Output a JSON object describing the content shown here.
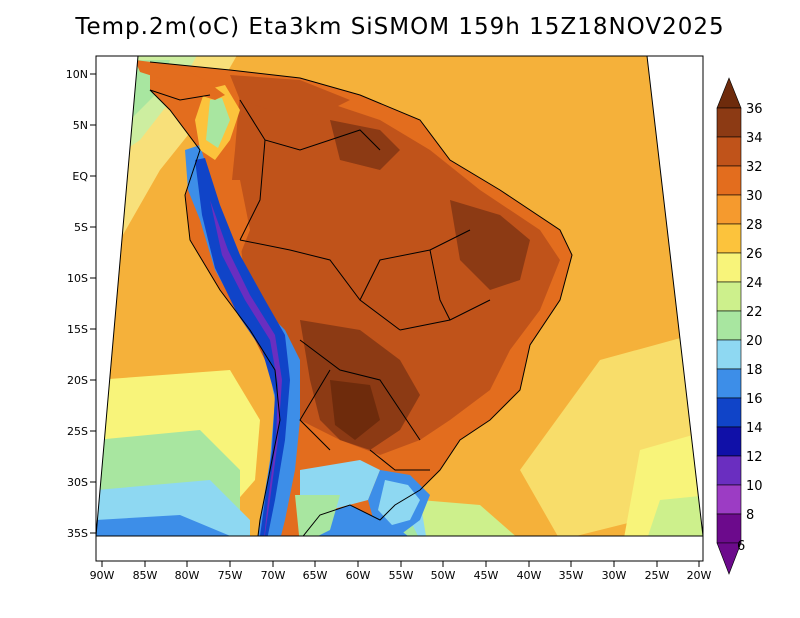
{
  "title": "Temp.2m(oC)  Eta3km  SiSMOM  159h  15Z18NOV2025",
  "map": {
    "lat_labels": [
      "10N",
      "5N",
      "EQ",
      "5S",
      "10S",
      "15S",
      "20S",
      "25S",
      "30S",
      "35S"
    ],
    "lon_labels": [
      "90W",
      "85W",
      "80W",
      "75W",
      "70W",
      "65W",
      "60W",
      "55W",
      "50W",
      "45W",
      "40W",
      "35W",
      "30W",
      "25W",
      "20W"
    ]
  },
  "colorbar": {
    "levels": [
      36,
      34,
      32,
      30,
      28,
      26,
      24,
      22,
      20,
      18,
      16,
      14,
      12,
      10,
      8,
      6
    ],
    "colors": [
      "#6e2b0c",
      "#8c3a14",
      "#c0531a",
      "#e36d1e",
      "#f59a2e",
      "#fcc33c",
      "#f8f47a",
      "#cdf08c",
      "#a8e6a0",
      "#8ed8f2",
      "#3d8ee8",
      "#1044c8",
      "#1010a8",
      "#6a2ec0",
      "#9c3cc4",
      "#6c0a8c"
    ]
  }
}
